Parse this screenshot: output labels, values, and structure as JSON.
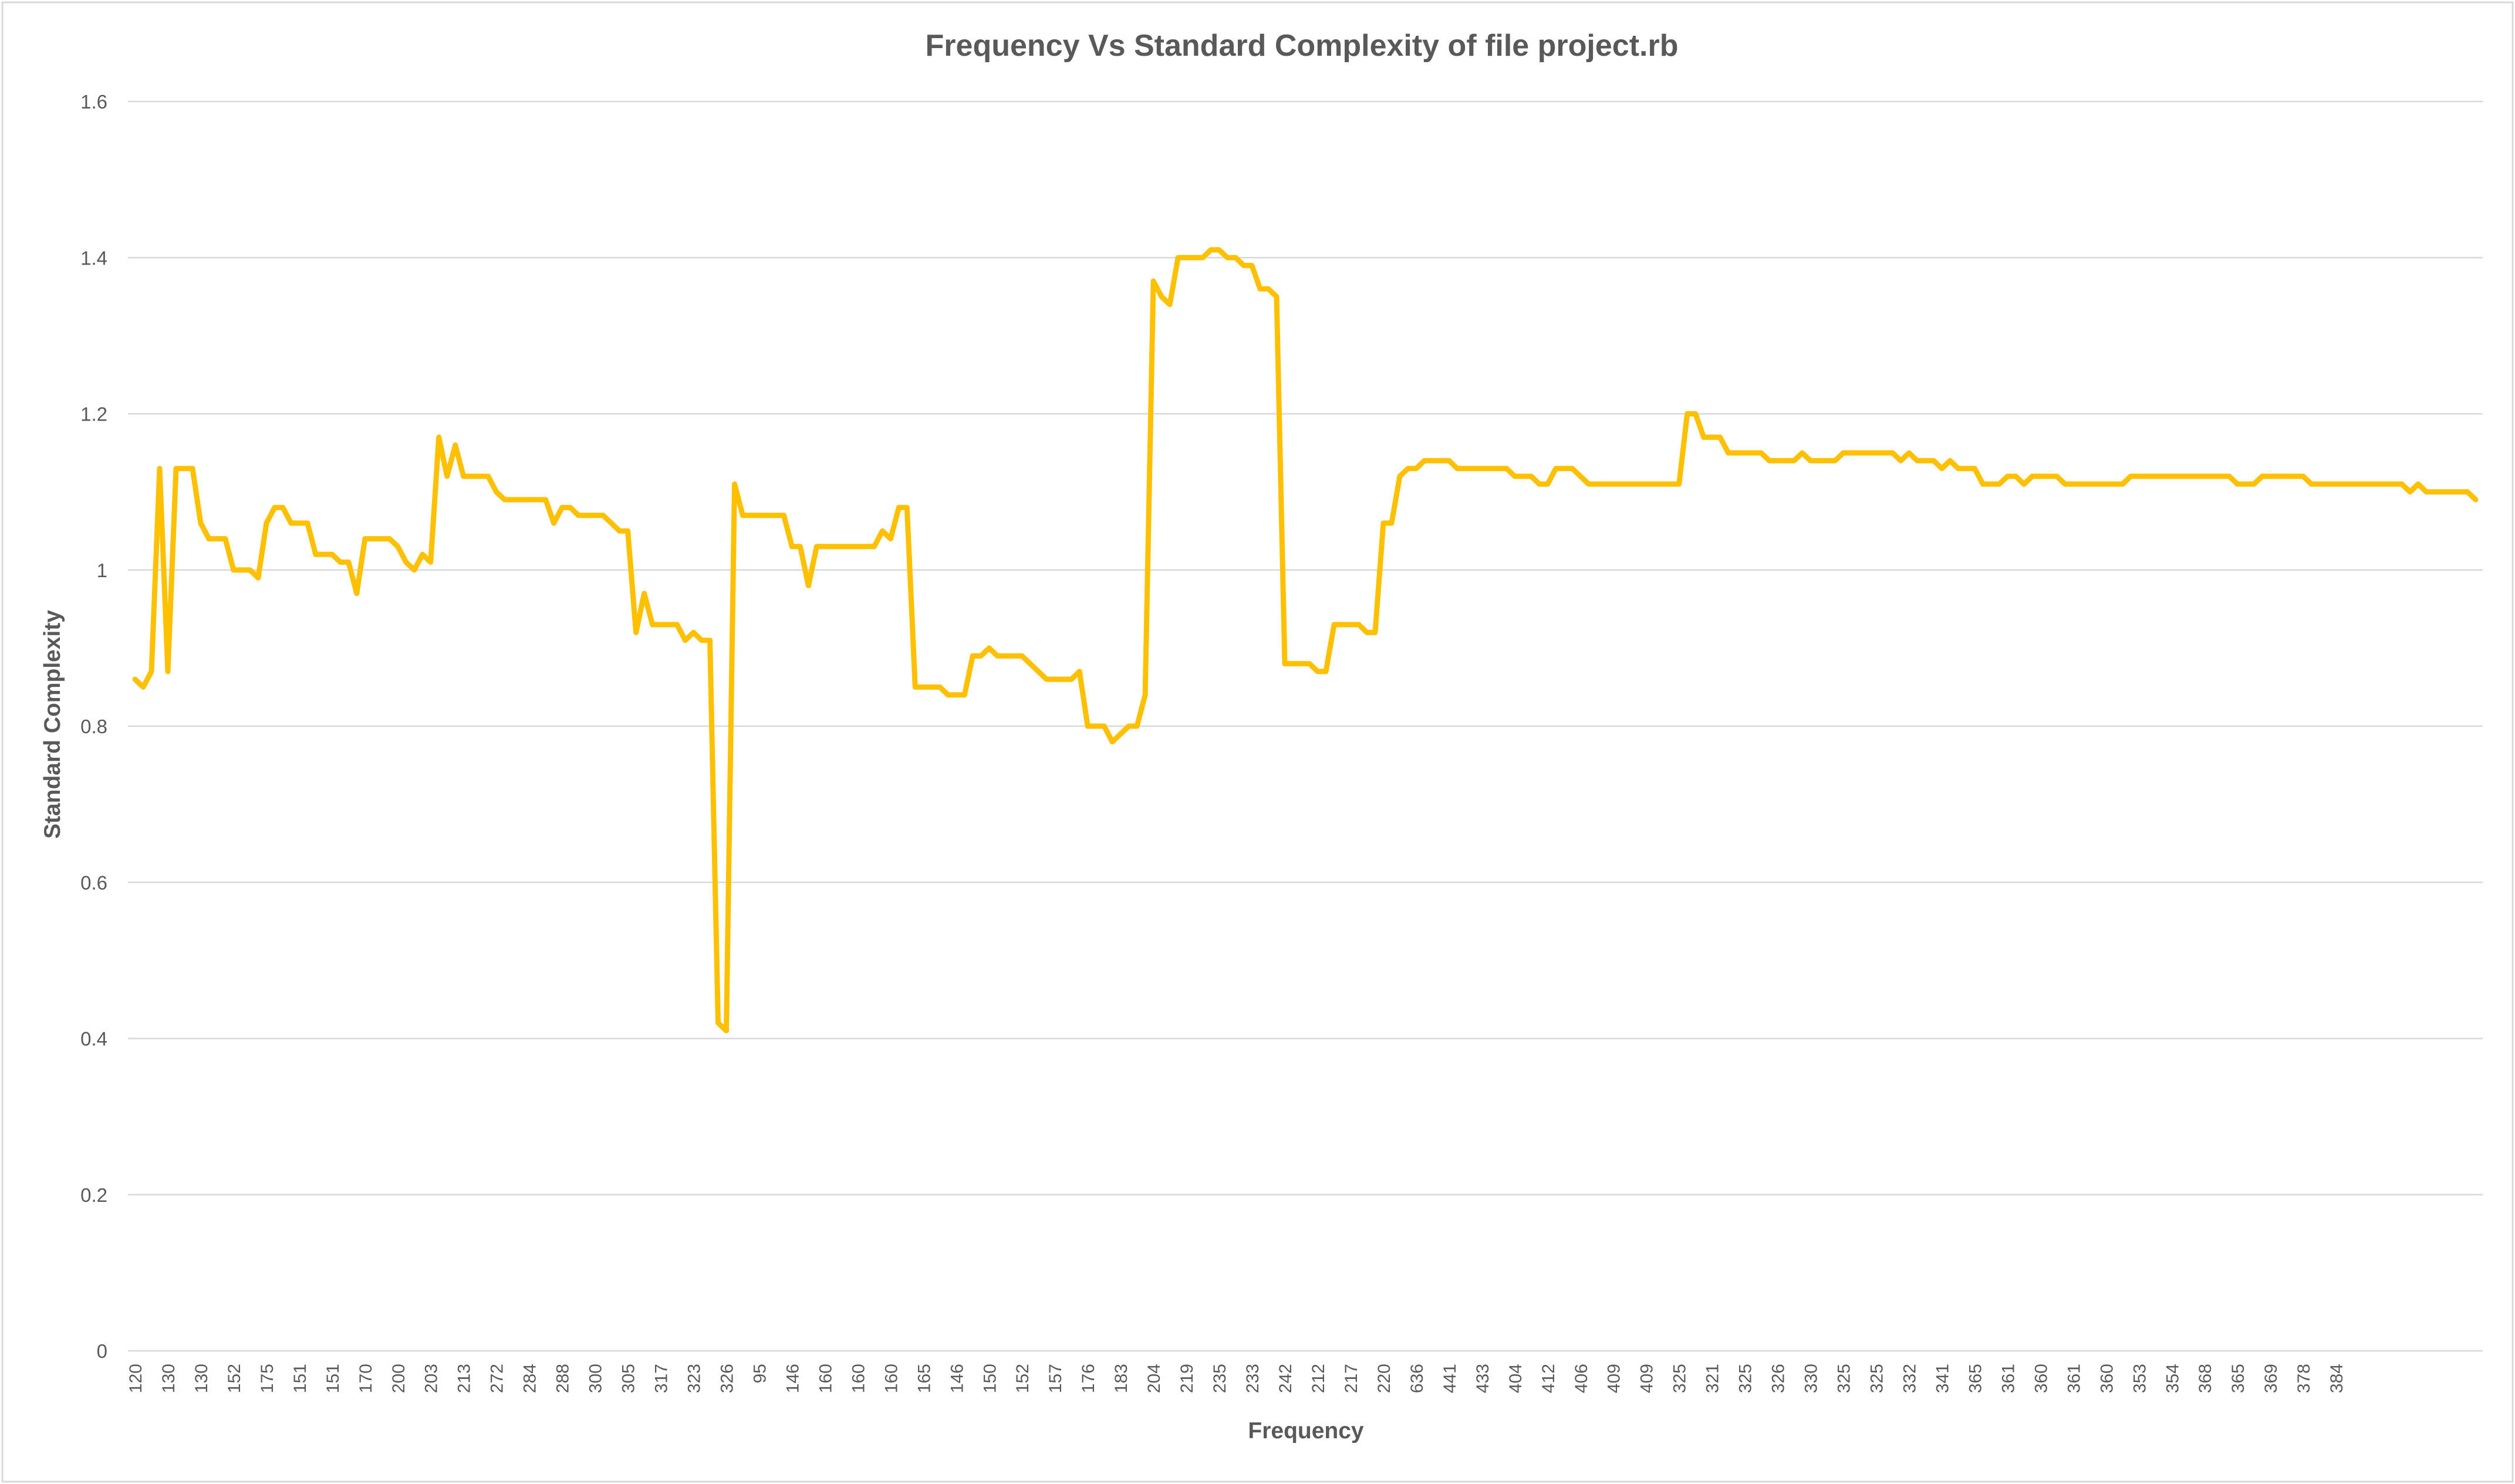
{
  "chart_data": {
    "type": "line",
    "title": "Frequency Vs Standard Complexity of file project.rb",
    "xlabel": "Frequency",
    "ylabel": "Standard Complexity",
    "ylim": [
      0,
      1.6
    ],
    "yticks": [
      "0",
      "0.2",
      "0.4",
      "0.6",
      "0.8",
      "1",
      "1.2",
      "1.4",
      "1.6"
    ],
    "grid": true,
    "legend": "none",
    "line_color": "#FFC000",
    "x_tick_labels": [
      "120",
      "130",
      "130",
      "152",
      "175",
      "151",
      "151",
      "170",
      "200",
      "203",
      "213",
      "272",
      "284",
      "288",
      "300",
      "305",
      "317",
      "323",
      "326",
      "95",
      "146",
      "160",
      "160",
      "160",
      "165",
      "146",
      "150",
      "152",
      "157",
      "176",
      "183",
      "204",
      "219",
      "235",
      "233",
      "242",
      "212",
      "217",
      "220",
      "636",
      "441",
      "433",
      "404",
      "412",
      "406",
      "409",
      "409",
      "325",
      "321",
      "325",
      "326",
      "330",
      "325",
      "325",
      "332",
      "341",
      "365",
      "361",
      "360",
      "361",
      "360",
      "353",
      "354",
      "368",
      "365",
      "369",
      "378",
      "384"
    ],
    "series": [
      {
        "values": [
          0.86,
          0.85,
          0.87,
          1.13,
          0.87,
          1.13,
          1.13,
          1.13,
          1.06,
          1.04,
          1.04,
          1.04,
          1.0,
          1.0,
          1.0,
          0.99,
          1.06,
          1.08,
          1.08,
          1.06,
          1.06,
          1.06,
          1.02,
          1.02,
          1.02,
          1.01,
          1.01,
          0.97,
          1.04,
          1.04,
          1.04,
          1.04,
          1.03,
          1.01,
          1.0,
          1.02,
          1.01,
          1.17,
          1.12,
          1.16,
          1.12,
          1.12,
          1.12,
          1.12,
          1.1,
          1.09,
          1.09,
          1.09,
          1.09,
          1.09,
          1.09,
          1.06,
          1.08,
          1.08,
          1.07,
          1.07,
          1.07,
          1.07,
          1.06,
          1.05,
          1.05,
          0.92,
          0.97,
          0.93,
          0.93,
          0.93,
          0.93,
          0.91,
          0.92,
          0.91,
          0.91,
          0.42,
          0.41,
          1.11,
          1.07,
          1.07,
          1.07,
          1.07,
          1.07,
          1.07,
          1.03,
          1.03,
          0.98,
          1.03,
          1.03,
          1.03,
          1.03,
          1.03,
          1.03,
          1.03,
          1.03,
          1.05,
          1.04,
          1.08,
          1.08,
          0.85,
          0.85,
          0.85,
          0.85,
          0.84,
          0.84,
          0.84,
          0.89,
          0.89,
          0.9,
          0.89,
          0.89,
          0.89,
          0.89,
          0.88,
          0.87,
          0.86,
          0.86,
          0.86,
          0.86,
          0.87,
          0.8,
          0.8,
          0.8,
          0.78,
          0.79,
          0.8,
          0.8,
          0.84,
          1.37,
          1.35,
          1.34,
          1.4,
          1.4,
          1.4,
          1.4,
          1.41,
          1.41,
          1.4,
          1.4,
          1.39,
          1.39,
          1.36,
          1.36,
          1.35,
          0.88,
          0.88,
          0.88,
          0.88,
          0.87,
          0.87,
          0.93,
          0.93,
          0.93,
          0.93,
          0.92,
          0.92,
          1.06,
          1.06,
          1.12,
          1.13,
          1.13,
          1.14,
          1.14,
          1.14,
          1.14,
          1.13,
          1.13,
          1.13,
          1.13,
          1.13,
          1.13,
          1.13,
          1.12,
          1.12,
          1.12,
          1.11,
          1.11,
          1.13,
          1.13,
          1.13,
          1.12,
          1.11,
          1.11,
          1.11,
          1.11,
          1.11,
          1.11,
          1.11,
          1.11,
          1.11,
          1.11,
          1.11,
          1.11,
          1.2,
          1.2,
          1.17,
          1.17,
          1.17,
          1.15,
          1.15,
          1.15,
          1.15,
          1.15,
          1.14,
          1.14,
          1.14,
          1.14,
          1.15,
          1.14,
          1.14,
          1.14,
          1.14,
          1.15,
          1.15,
          1.15,
          1.15,
          1.15,
          1.15,
          1.15,
          1.14,
          1.15,
          1.14,
          1.14,
          1.14,
          1.13,
          1.14,
          1.13,
          1.13,
          1.13,
          1.11,
          1.11,
          1.11,
          1.12,
          1.12,
          1.11,
          1.12,
          1.12,
          1.12,
          1.12,
          1.11,
          1.11,
          1.11,
          1.11,
          1.11,
          1.11,
          1.11,
          1.11,
          1.12,
          1.12,
          1.12,
          1.12,
          1.12,
          1.12,
          1.12,
          1.12,
          1.12,
          1.12,
          1.12,
          1.12,
          1.12,
          1.11,
          1.11,
          1.11,
          1.12,
          1.12,
          1.12,
          1.12,
          1.12,
          1.12,
          1.11,
          1.11,
          1.11,
          1.11,
          1.11,
          1.11,
          1.11,
          1.11,
          1.11,
          1.11,
          1.11,
          1.11,
          1.1,
          1.11,
          1.1,
          1.1,
          1.1,
          1.1,
          1.1,
          1.1,
          1.09
        ]
      }
    ]
  }
}
